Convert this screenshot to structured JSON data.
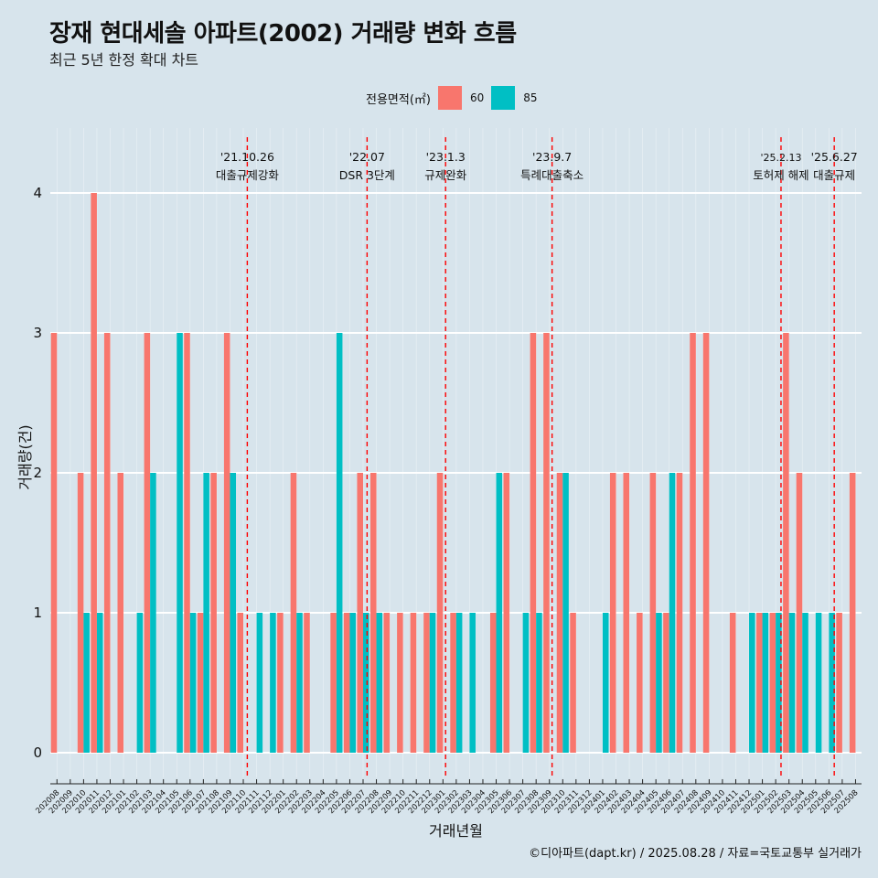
{
  "header": {
    "title": "장재 현대세솔 아파트(2002) 거래량 변화 흐름",
    "subtitle": "최근 5년 한정 확대 차트"
  },
  "legend": {
    "title": "전용면적(㎡)",
    "items": [
      {
        "label": "60",
        "color": "#f8766d"
      },
      {
        "label": "85",
        "color": "#00bfc4"
      }
    ]
  },
  "caption": "©디아파트(dapt.kr) / 2025.08.28 / 자료=국토교통부 실거래가",
  "chart_data": {
    "type": "bar",
    "xlabel": "거래년월",
    "ylabel": "거래량(건)",
    "ylim": [
      0,
      4
    ],
    "yticks": [
      0,
      1,
      2,
      3,
      4
    ],
    "grid": true,
    "legend_position": "top",
    "categories": [
      "202008",
      "202009",
      "202010",
      "202011",
      "202012",
      "202101",
      "202102",
      "202103",
      "202104",
      "202105",
      "202106",
      "202107",
      "202108",
      "202109",
      "202110",
      "202111",
      "202112",
      "202201",
      "202202",
      "202203",
      "202204",
      "202205",
      "202206",
      "202207",
      "202208",
      "202209",
      "202210",
      "202211",
      "202212",
      "202301",
      "202302",
      "202303",
      "202304",
      "202305",
      "202306",
      "202307",
      "202308",
      "202309",
      "202310",
      "202311",
      "202312",
      "202401",
      "202402",
      "202403",
      "202404",
      "202405",
      "202406",
      "202407",
      "202408",
      "202409",
      "202410",
      "202411",
      "202412",
      "202501",
      "202502",
      "202503",
      "202504",
      "202505",
      "202506",
      "202507",
      "202508"
    ],
    "series": [
      {
        "name": "60",
        "color": "#f8766d",
        "values": [
          3,
          0,
          2,
          4,
          3,
          2,
          0,
          3,
          0,
          0,
          3,
          1,
          2,
          3,
          1,
          0,
          0,
          1,
          2,
          1,
          0,
          1,
          1,
          2,
          2,
          1,
          1,
          1,
          1,
          2,
          1,
          0,
          0,
          1,
          2,
          0,
          3,
          3,
          2,
          1,
          0,
          0,
          2,
          2,
          1,
          2,
          1,
          2,
          3,
          3,
          0,
          1,
          0,
          1,
          1,
          3,
          2,
          0,
          0,
          1,
          2
        ]
      },
      {
        "name": "85",
        "color": "#00bfc4",
        "values": [
          0,
          0,
          1,
          1,
          0,
          0,
          1,
          2,
          0,
          3,
          1,
          2,
          0,
          2,
          0,
          1,
          1,
          0,
          1,
          0,
          0,
          3,
          1,
          1,
          1,
          0,
          0,
          0,
          1,
          0,
          1,
          1,
          0,
          2,
          0,
          1,
          1,
          0,
          2,
          0,
          0,
          1,
          0,
          0,
          0,
          1,
          2,
          0,
          0,
          0,
          0,
          0,
          1,
          1,
          1,
          1,
          1,
          1,
          1,
          0,
          0
        ]
      }
    ],
    "events": [
      {
        "date": "'21.10.26",
        "label": "대출규제강화",
        "position": 14.3
      },
      {
        "date": "'22.07",
        "label": "DSR 3단계",
        "position": 23.3
      },
      {
        "date": "'23.1.3",
        "label": "규제완화",
        "position": 29.2
      },
      {
        "date": "'23.9.7",
        "label": "특례대출축소",
        "position": 37.2
      },
      {
        "date": "'25.2.13",
        "label": "토허제 해제",
        "position": 54.4
      },
      {
        "date": "'25.6.27",
        "label": "대출규제",
        "position": 58.4
      }
    ]
  }
}
